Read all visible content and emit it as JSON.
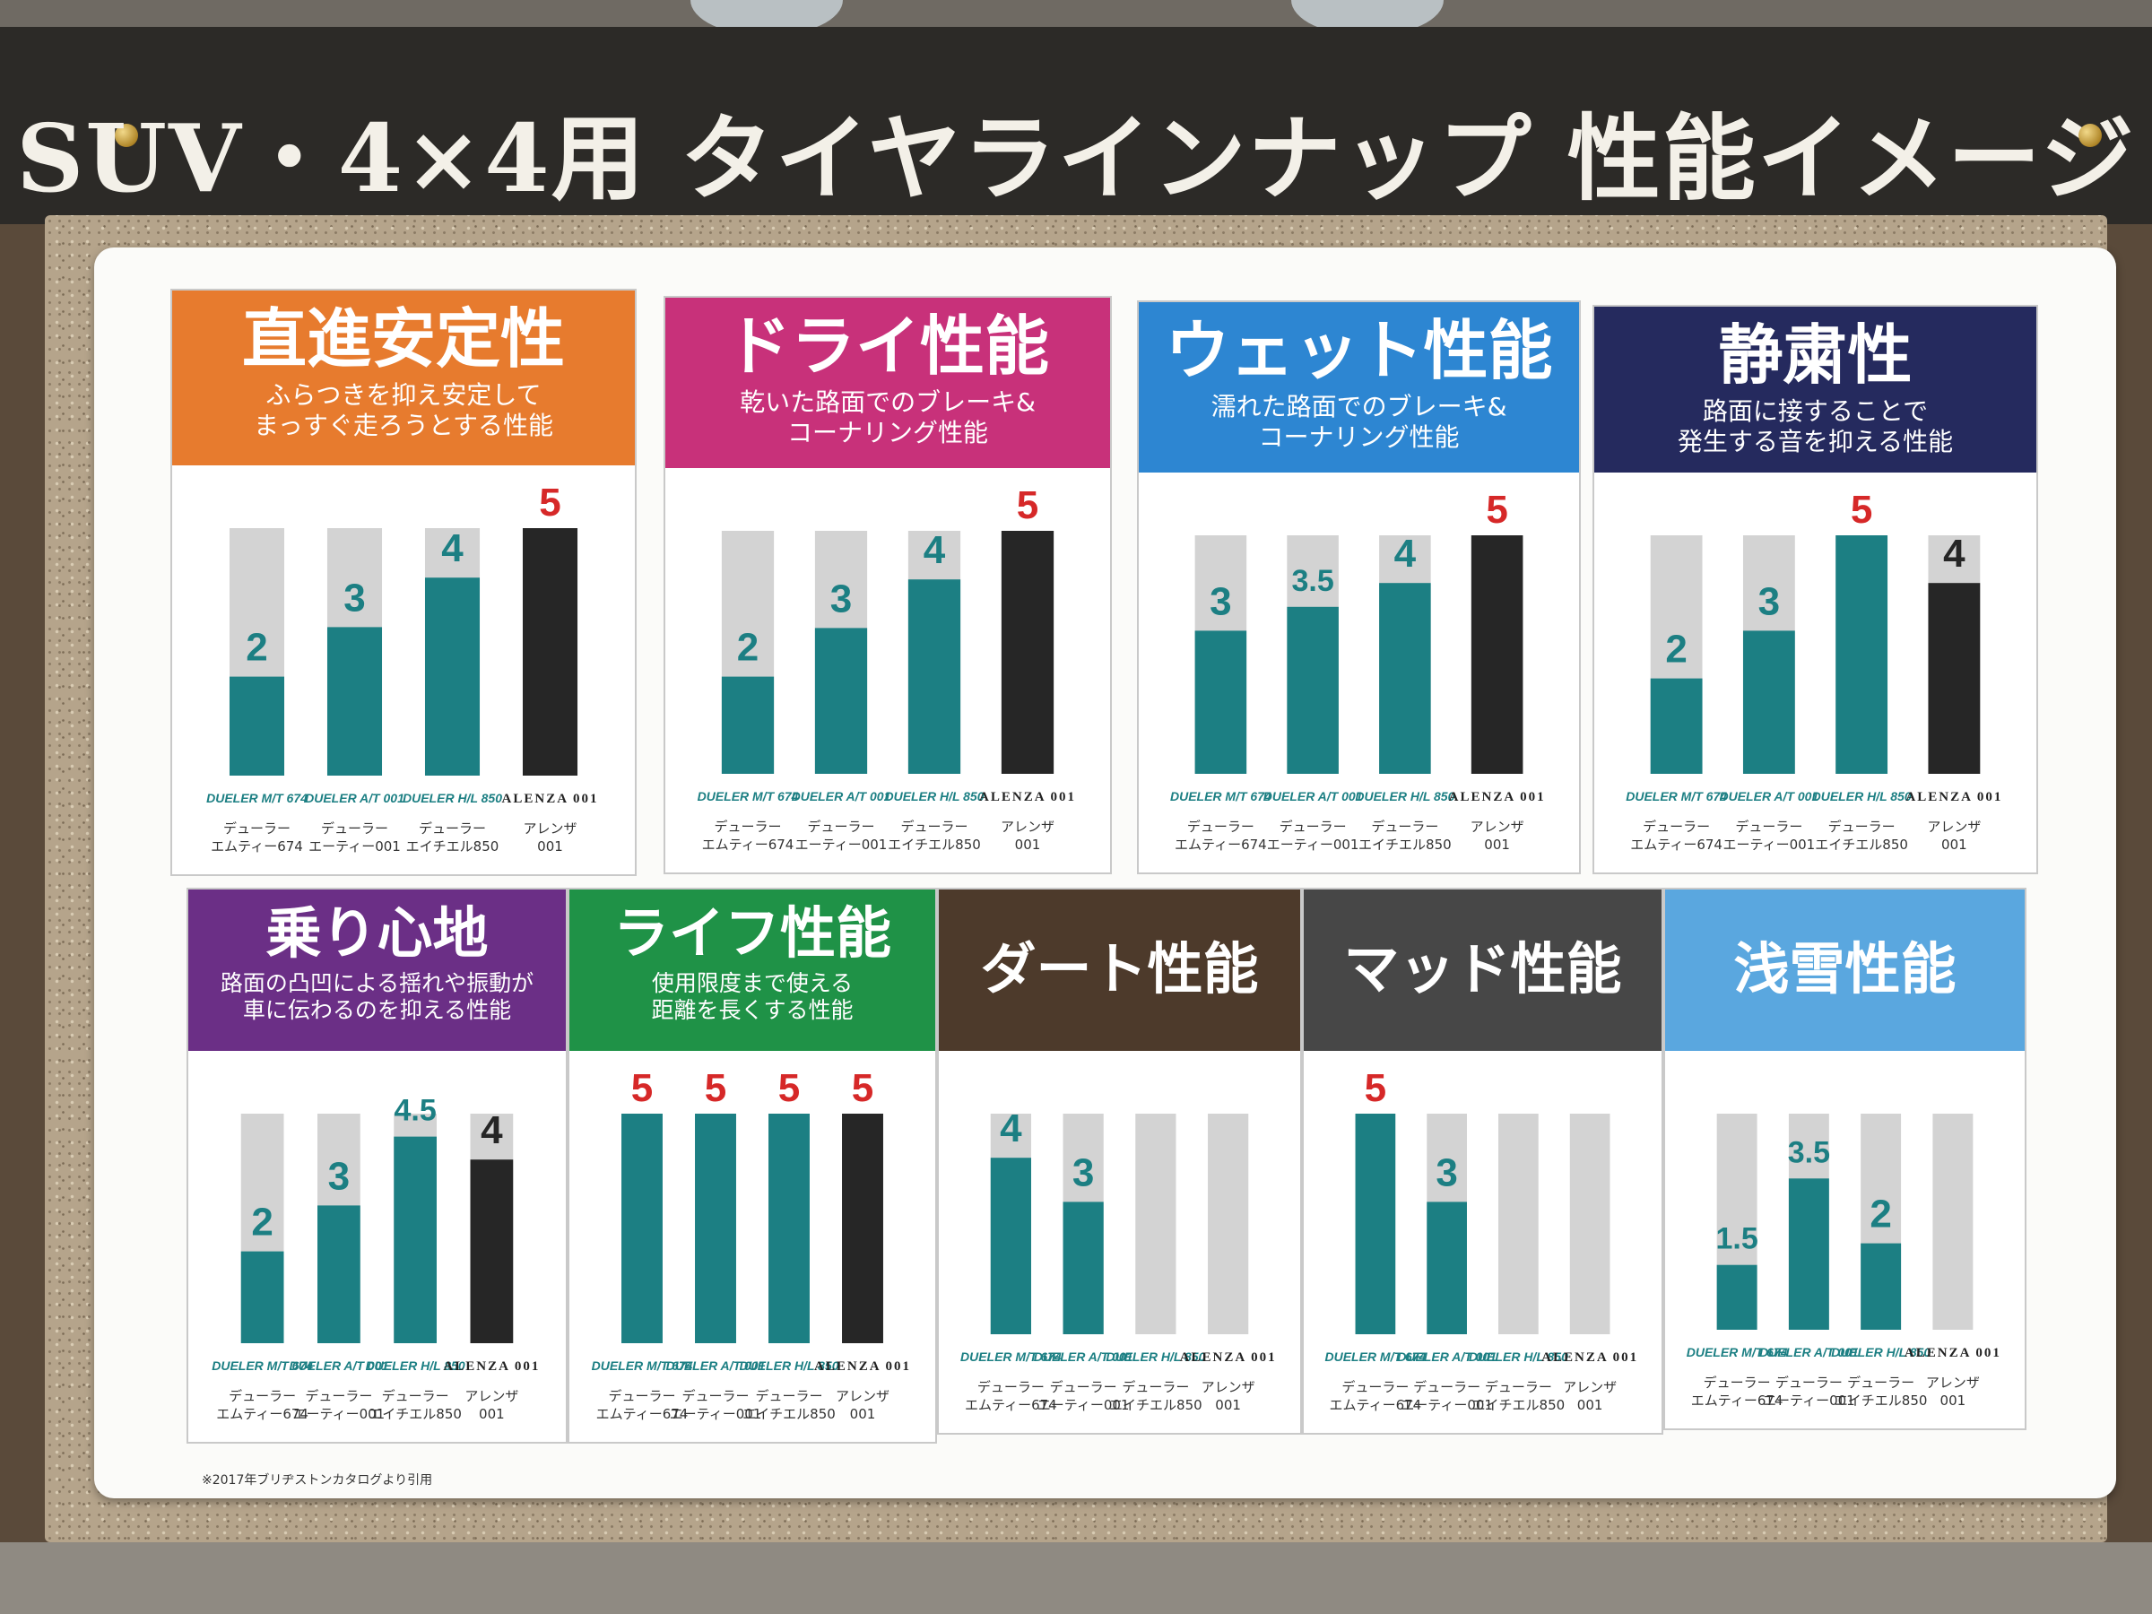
{
  "header": {
    "title": "SUV・4×4用 タイヤラインナップ 性能イメージ"
  },
  "colors": {
    "teal": "#1c7f83",
    "black": "#262626",
    "track": "#d3d3d3",
    "value_red": "#d62828",
    "value_teal": "#1c7f83",
    "value_black": "#262626"
  },
  "footnote": "※2017年ブリヂストンカタログより引用",
  "tires": [
    {
      "logo": "DUELER M/T 674",
      "name": "デューラー エムティー674"
    },
    {
      "logo": "DUELER A/T 001",
      "name": "デューラー エーティー001"
    },
    {
      "logo": "DUELER H/L 850",
      "name": "デューラー エイチエル850"
    },
    {
      "logo": "ALENZA 001",
      "name": "アレンザ 001"
    }
  ],
  "chart_data": [
    {
      "type": "bar",
      "title": "直進安定性",
      "subtitle": [
        "ふらつきを抑え安定して",
        "まっすぐ走ろうとする性能"
      ],
      "head_color": "#e77b2e",
      "categories": [
        "デューラー エムティー674",
        "デューラー エーティー001",
        "デューラー エイチエル850",
        "アレンザ 001"
      ],
      "values": [
        2,
        3,
        4,
        5
      ],
      "value_labels": [
        "2",
        "3",
        "4",
        "5"
      ],
      "ylim": [
        0,
        5
      ]
    },
    {
      "type": "bar",
      "title": "ドライ性能",
      "subtitle": [
        "乾いた路面でのブレーキ&",
        "コーナリング性能"
      ],
      "head_color": "#c8317a",
      "categories": [
        "デューラー エムティー674",
        "デューラー エーティー001",
        "デューラー エイチエル850",
        "アレンザ 001"
      ],
      "values": [
        2,
        3,
        4,
        5
      ],
      "value_labels": [
        "2",
        "3",
        "4",
        "5"
      ],
      "ylim": [
        0,
        5
      ]
    },
    {
      "type": "bar",
      "title": "ウェット性能",
      "subtitle": [
        "濡れた路面でのブレーキ&",
        "コーナリング性能"
      ],
      "head_color": "#2d86d2",
      "categories": [
        "デューラー エムティー674",
        "デューラー エーティー001",
        "デューラー エイチエル850",
        "アレンザ 001"
      ],
      "values": [
        3,
        3.5,
        4,
        5
      ],
      "value_labels": [
        "3",
        "3.5",
        "4",
        "5"
      ],
      "ylim": [
        0,
        5
      ]
    },
    {
      "type": "bar",
      "title": "静粛性",
      "subtitle": [
        "路面に接することで",
        "発生する音を抑える性能"
      ],
      "head_color": "#252a5e",
      "categories": [
        "デューラー エムティー674",
        "デューラー エーティー001",
        "デューラー エイチエル850",
        "アレンザ 001"
      ],
      "values": [
        2,
        3,
        5,
        4
      ],
      "value_labels": [
        "2",
        "3",
        "5",
        "4"
      ],
      "ylim": [
        0,
        5
      ]
    },
    {
      "type": "bar",
      "title": "乗り心地",
      "subtitle": [
        "路面の凸凹による揺れや振動が",
        "車に伝わるのを抑える性能"
      ],
      "head_color": "#6b2f86",
      "categories": [
        "デューラー エムティー674",
        "デューラー エーティー001",
        "デューラー エイチエル850",
        "アレンザ 001"
      ],
      "values": [
        2,
        3,
        4.5,
        4
      ],
      "value_labels": [
        "2",
        "3",
        "4.5",
        "4"
      ],
      "ylim": [
        0,
        5
      ]
    },
    {
      "type": "bar",
      "title": "ライフ性能",
      "subtitle": [
        "使用限度まで使える",
        "距離を長くする性能"
      ],
      "head_color": "#1f9247",
      "categories": [
        "デューラー エムティー674",
        "デューラー エーティー001",
        "デューラー エイチエル850",
        "アレンザ 001"
      ],
      "values": [
        5,
        5,
        5,
        5
      ],
      "value_labels": [
        "5",
        "5",
        "5",
        "5"
      ],
      "ylim": [
        0,
        5
      ]
    },
    {
      "type": "bar",
      "title": "ダート性能",
      "subtitle": [],
      "head_color": "#4d3a2b",
      "categories": [
        "デューラー エムティー674",
        "デューラー エーティー001",
        "デューラー エイチエル850",
        "アレンザ 001"
      ],
      "values": [
        4,
        3,
        null,
        null
      ],
      "value_labels": [
        "4",
        "3",
        "",
        ""
      ],
      "ylim": [
        0,
        5
      ]
    },
    {
      "type": "bar",
      "title": "マッド性能",
      "subtitle": [],
      "head_color": "#474747",
      "categories": [
        "デューラー エムティー674",
        "デューラー エーティー001",
        "デューラー エイチエル850",
        "アレンザ 001"
      ],
      "values": [
        5,
        3,
        null,
        null
      ],
      "value_labels": [
        "5",
        "3",
        "",
        ""
      ],
      "ylim": [
        0,
        5
      ]
    },
    {
      "type": "bar",
      "title": "浅雪性能",
      "subtitle": [],
      "head_color": "#5aa7df",
      "categories": [
        "デューラー エムティー674",
        "デューラー エーティー001",
        "デューラー エイチエル850",
        "アレンザ 001"
      ],
      "values": [
        1.5,
        3.5,
        2,
        null
      ],
      "value_labels": [
        "1.5",
        "3.5",
        "2",
        ""
      ],
      "ylim": [
        0,
        5
      ]
    }
  ]
}
